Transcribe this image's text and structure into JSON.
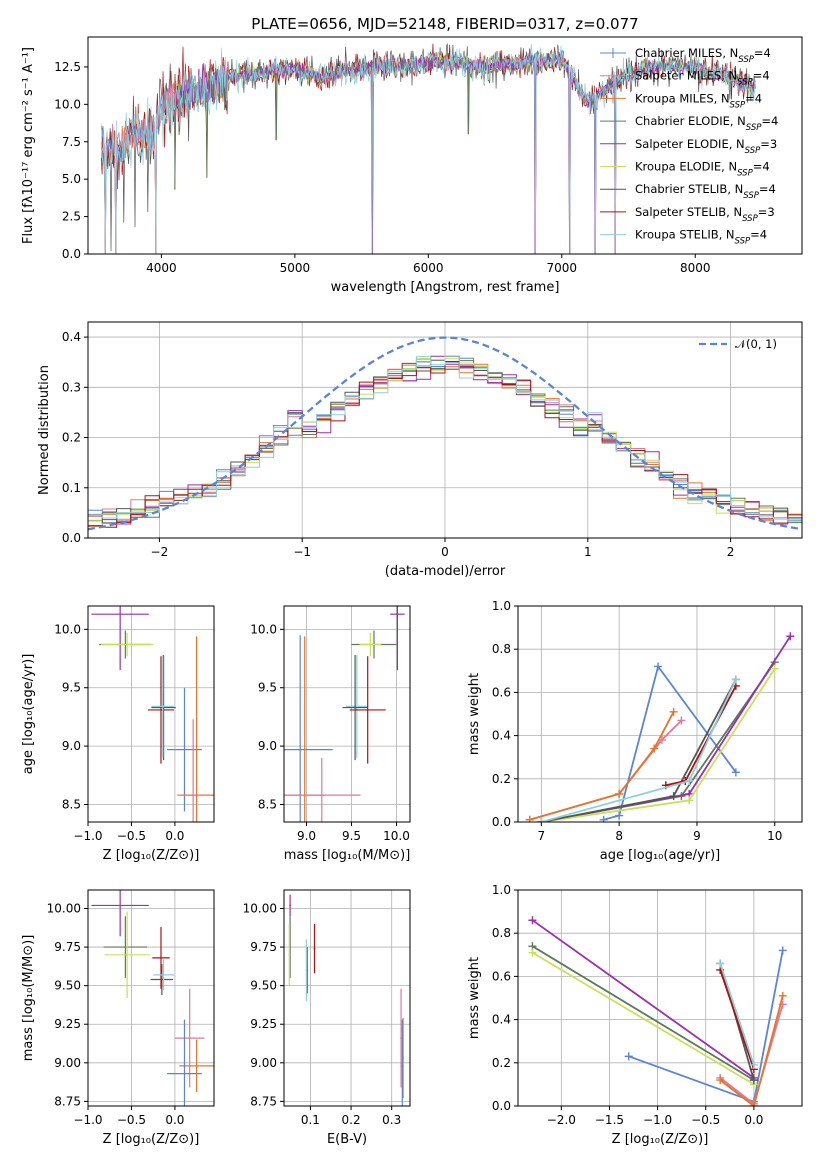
{
  "colors": {
    "Chabrier MILES": "#5b84d8",
    "Salpeter MILES": "#e07898",
    "Kroupa MILES": "#e8742a",
    "Chabrier ELODIE": "#5c7a5c",
    "Salpeter ELODIE": "#9a2fb0",
    "Kroupa ELODIE": "#c8e05a",
    "Chabrier STELIB": "#555555",
    "Salpeter STELIB": "#b01010",
    "Kroupa STELIB": "#8cd0dc"
  },
  "chart_data": [
    {
      "id": "spectrum",
      "type": "line",
      "title": "PLATE=0656, MJD=52148, FIBERID=0317, z=0.077",
      "xlabel": "wavelength [Angstrom, rest frame]",
      "ylabel": "Flux [fλ10⁻¹⁷ erg cm⁻² s⁻¹ A⁻¹]",
      "xlim": [
        3450,
        8800
      ],
      "ylim": [
        0,
        14.5
      ],
      "xticks": [
        4000,
        5000,
        6000,
        7000,
        8000
      ],
      "yticks": [
        0.0,
        2.5,
        5.0,
        7.5,
        10.0,
        12.5
      ],
      "grid": false,
      "legend_position": "top-right",
      "legend": [
        {
          "name": "Chabrier MILES",
          "label": "Chabrier MILES, N",
          "sub": "SSP",
          "n": "=4"
        },
        {
          "name": "Salpeter MILES",
          "label": "Salpeter MILES, N",
          "sub": "SSP",
          "n": "=4"
        },
        {
          "name": "Kroupa MILES",
          "label": "Kroupa MILES, N",
          "sub": "SSP",
          "n": "=4"
        },
        {
          "name": "Chabrier ELODIE",
          "label": "Chabrier ELODIE, N",
          "sub": "SSP",
          "n": "=4"
        },
        {
          "name": "Salpeter ELODIE",
          "label": "Salpeter ELODIE, N",
          "sub": "SSP",
          "n": "=3"
        },
        {
          "name": "Kroupa ELODIE",
          "label": "Kroupa ELODIE, N",
          "sub": "SSP",
          "n": "=4"
        },
        {
          "name": "Chabrier STELIB",
          "label": "Chabrier STELIB, N",
          "sub": "SSP",
          "n": "=4"
        },
        {
          "name": "Salpeter STELIB",
          "label": "Salpeter STELIB, N",
          "sub": "SSP",
          "n": "=3"
        },
        {
          "name": "Kroupa STELIB",
          "label": "Kroupa STELIB, N",
          "sub": "SSP",
          "n": "=4"
        }
      ],
      "continuum_anchors": [
        [
          3550,
          7.2
        ],
        [
          3650,
          7.0
        ],
        [
          3800,
          7.8
        ],
        [
          3950,
          8.2
        ],
        [
          4000,
          9.8
        ],
        [
          4100,
          10.6
        ],
        [
          4300,
          11.0
        ],
        [
          4500,
          11.8
        ],
        [
          4700,
          12.1
        ],
        [
          5000,
          12.4
        ],
        [
          5200,
          11.8
        ],
        [
          5400,
          12.3
        ],
        [
          5600,
          12.5
        ],
        [
          5800,
          12.6
        ],
        [
          6000,
          12.8
        ],
        [
          6200,
          12.9
        ],
        [
          6400,
          12.5
        ],
        [
          6600,
          12.7
        ],
        [
          6800,
          12.9
        ],
        [
          7000,
          13.0
        ],
        [
          7200,
          10.0
        ],
        [
          7400,
          11.6
        ],
        [
          7700,
          12.6
        ],
        [
          8000,
          12.4
        ],
        [
          8200,
          12.0
        ],
        [
          8400,
          11.3
        ]
      ],
      "noise_drops": [
        [
          3580,
          0.0
        ],
        [
          3620,
          0.2
        ],
        [
          3660,
          0.0
        ],
        [
          3720,
          2.1
        ],
        [
          3800,
          1.8
        ],
        [
          3900,
          2.8
        ],
        [
          3960,
          0.0
        ],
        [
          4100,
          4.3
        ],
        [
          4340,
          5.1
        ],
        [
          4860,
          7.6
        ],
        [
          5580,
          0.0
        ],
        [
          6300,
          8.0
        ],
        [
          6800,
          0.0
        ],
        [
          7060,
          0.0
        ],
        [
          7250,
          0.0
        ],
        [
          7400,
          0.0
        ]
      ]
    },
    {
      "id": "residuals",
      "type": "histogram",
      "xlabel": "(data-model)/error",
      "ylabel": "Normed distribution",
      "xlim": [
        -2.5,
        2.5
      ],
      "ylim": [
        0,
        0.43
      ],
      "xticks": [
        -2,
        -1,
        0,
        1,
        2
      ],
      "yticks": [
        0.0,
        0.1,
        0.2,
        0.3,
        0.4
      ],
      "grid": true,
      "legend_position": "top-right",
      "legend_label": "𝒩(0, 1)",
      "reference_curve": "gaussian mean 0 sigma 1",
      "bins": 50
    },
    {
      "id": "age-vs-Z",
      "type": "errorbar",
      "xlabel": "Z [log₁₀(Z/Z⊙)]",
      "ylabel": "age  [log₁₀(age/yr)]",
      "xlim": [
        -1.0,
        0.45
      ],
      "ylim": [
        8.35,
        10.2
      ],
      "xticks": [
        -1.0,
        -0.5,
        0.0
      ],
      "yticks": [
        8.5,
        9.0,
        9.5,
        10.0
      ],
      "grid": true,
      "points": [
        {
          "s": "Salpeter ELODIE",
          "x": -0.63,
          "xerr": 0.33,
          "y": 10.13,
          "yerr": 0.48
        },
        {
          "s": "Chabrier ELODIE",
          "x": -0.57,
          "xerr": 0.3,
          "y": 9.87,
          "yerr": 0.12
        },
        {
          "s": "Kroupa ELODIE",
          "x": -0.55,
          "xerr": 0.3,
          "y": 9.87,
          "yerr": 0.1
        },
        {
          "s": "Chabrier STELIB",
          "x": -0.13,
          "xerr": 0.14,
          "y": 9.33,
          "yerr": 0.45
        },
        {
          "s": "Salpeter STELIB",
          "x": -0.16,
          "xerr": 0.15,
          "y": 9.31,
          "yerr": 0.46
        },
        {
          "s": "Kroupa STELIB",
          "x": -0.14,
          "xerr": 0.13,
          "y": 9.34,
          "yerr": 0.44
        },
        {
          "s": "Chabrier MILES",
          "x": 0.11,
          "xerr": 0.2,
          "y": 8.97,
          "yerr": 0.53
        },
        {
          "s": "Kroupa MILES",
          "x": 0.25,
          "xerr": 0.22,
          "y": 8.58,
          "yerr": 1.36
        },
        {
          "s": "Salpeter MILES",
          "x": 0.21,
          "xerr": 0.03,
          "y": 8.58,
          "yerr": 0.65
        }
      ]
    },
    {
      "id": "age-vs-mass",
      "type": "errorbar",
      "xlabel": "mass [log₁₀(M/M⊙)]",
      "ylabel": "",
      "xlim": [
        8.75,
        10.15
      ],
      "ylim": [
        8.35,
        10.2
      ],
      "xticks": [
        9.0,
        9.5,
        10.0
      ],
      "yticks": [
        8.5,
        9.0,
        9.5,
        10.0
      ],
      "grid": true,
      "points": [
        {
          "s": "Chabrier MILES",
          "x": 8.93,
          "xerr": 0.36,
          "y": 8.97,
          "yerr": 0.98
        },
        {
          "s": "Kroupa MILES",
          "x": 8.98,
          "xerr": 0.23,
          "y": 8.58,
          "yerr": 1.36
        },
        {
          "s": "Salpeter MILES",
          "x": 9.17,
          "xerr": 0.43,
          "y": 8.58,
          "yerr": 0.32
        },
        {
          "s": "Kroupa STELIB",
          "x": 9.56,
          "xerr": 0.12,
          "y": 9.34,
          "yerr": 0.44
        },
        {
          "s": "Chabrier STELIB",
          "x": 9.54,
          "xerr": 0.14,
          "y": 9.33,
          "yerr": 0.45
        },
        {
          "s": "Salpeter STELIB",
          "x": 9.68,
          "xerr": 0.2,
          "y": 9.31,
          "yerr": 0.46
        },
        {
          "s": "Chabrier ELODIE",
          "x": 9.75,
          "xerr": 0.25,
          "y": 9.87,
          "yerr": 0.12
        },
        {
          "s": "Kroupa ELODIE",
          "x": 9.71,
          "xerr": 0.12,
          "y": 9.87,
          "yerr": 0.1
        },
        {
          "s": "Salpeter ELODIE",
          "x": 10.01,
          "xerr": 0.08,
          "y": 10.13,
          "yerr": 0.48
        }
      ]
    },
    {
      "id": "massweight-vs-age",
      "type": "line",
      "xlabel": "age  [log₁₀(age/yr)]",
      "ylabel": "mass weight",
      "xlim": [
        6.7,
        10.35
      ],
      "ylim": [
        0,
        1.0
      ],
      "xticks": [
        7,
        8,
        9,
        10
      ],
      "yticks": [
        0.0,
        0.2,
        0.4,
        0.6,
        0.8,
        1.0
      ],
      "grid": true,
      "series": [
        {
          "name": "Chabrier MILES",
          "x": [
            7.8,
            8.0,
            8.5,
            9.5
          ],
          "y": [
            0.01,
            0.03,
            0.72,
            0.23
          ]
        },
        {
          "name": "Salpeter MILES",
          "x": [
            6.85,
            8.0,
            8.55,
            8.8
          ],
          "y": [
            0.01,
            0.13,
            0.38,
            0.47
          ]
        },
        {
          "name": "Kroupa MILES",
          "x": [
            6.85,
            8.0,
            8.45,
            8.7
          ],
          "y": [
            0.01,
            0.13,
            0.34,
            0.51
          ]
        },
        {
          "name": "Chabrier ELODIE",
          "x": [
            7.0,
            8.8,
            10.0
          ],
          "y": [
            0.0,
            0.12,
            0.74
          ]
        },
        {
          "name": "Salpeter ELODIE",
          "x": [
            7.0,
            8.9,
            10.2
          ],
          "y": [
            0.0,
            0.13,
            0.86
          ]
        },
        {
          "name": "Kroupa ELODIE",
          "x": [
            7.0,
            8.9,
            10.0
          ],
          "y": [
            0.0,
            0.1,
            0.71
          ]
        },
        {
          "name": "Chabrier STELIB",
          "x": [
            7.0,
            8.7,
            9.5
          ],
          "y": [
            0.0,
            0.12,
            0.66
          ]
        },
        {
          "name": "Salpeter STELIB",
          "x": [
            8.6,
            8.85,
            9.5
          ],
          "y": [
            0.17,
            0.19,
            0.63
          ]
        },
        {
          "name": "Kroupa STELIB",
          "x": [
            7.0,
            8.9,
            9.5
          ],
          "y": [
            0.0,
            0.19,
            0.66
          ]
        }
      ]
    },
    {
      "id": "mass-vs-Z",
      "type": "errorbar",
      "xlabel": "Z [log₁₀(Z/Z⊙)]",
      "ylabel": "mass [log₁₀(M/M⊙)]",
      "xlim": [
        -1.0,
        0.45
      ],
      "ylim": [
        8.72,
        10.12
      ],
      "xticks": [
        -1.0,
        -0.5,
        0.0
      ],
      "yticks": [
        8.75,
        9.0,
        9.25,
        9.5,
        9.75,
        10.0
      ],
      "grid": true,
      "points": [
        {
          "s": "Salpeter ELODIE",
          "x": -0.63,
          "xerr": 0.33,
          "y": 10.02,
          "yerr": 0.2
        },
        {
          "s": "Chabrier ELODIE",
          "x": -0.57,
          "xerr": 0.25,
          "y": 9.75,
          "yerr": 0.2
        },
        {
          "s": "Kroupa ELODIE",
          "x": -0.55,
          "xerr": 0.26,
          "y": 9.7,
          "yerr": 0.28
        },
        {
          "s": "Salpeter STELIB",
          "x": -0.16,
          "xerr": 0.1,
          "y": 9.68,
          "yerr": 0.2
        },
        {
          "s": "Chabrier STELIB",
          "x": -0.15,
          "xerr": 0.13,
          "y": 9.54,
          "yerr": 0.1
        },
        {
          "s": "Kroupa STELIB",
          "x": -0.13,
          "xerr": 0.12,
          "y": 9.57,
          "yerr": 0.1
        },
        {
          "s": "Salpeter MILES",
          "x": 0.17,
          "xerr": 0.17,
          "y": 9.16,
          "yerr": 0.32
        },
        {
          "s": "Kroupa MILES",
          "x": 0.25,
          "xerr": 0.2,
          "y": 8.98,
          "yerr": 0.17
        },
        {
          "s": "Chabrier MILES",
          "x": 0.11,
          "xerr": 0.2,
          "y": 8.93,
          "yerr": 0.35
        }
      ]
    },
    {
      "id": "mass-vs-EBV",
      "type": "errorbar",
      "xlabel": "E(B-V)",
      "ylabel": "",
      "xlim": [
        0.035,
        0.345
      ],
      "ylim": [
        8.72,
        10.12
      ],
      "xticks": [
        0.1,
        0.2,
        0.3
      ],
      "yticks": [
        8.75,
        9.0,
        9.25,
        9.5,
        9.75,
        10.0
      ],
      "grid": true,
      "points": [
        {
          "s": "Salpeter ELODIE",
          "x": 0.05,
          "xerr": 0.002,
          "y": 10.02,
          "yerr": 0.07
        },
        {
          "s": "Chabrier ELODIE",
          "x": 0.05,
          "xerr": 0.002,
          "y": 9.75,
          "yerr": 0.2
        },
        {
          "s": "Kroupa ELODIE",
          "x": 0.048,
          "xerr": 0.002,
          "y": 9.7,
          "yerr": 0.2
        },
        {
          "s": "Chabrier STELIB",
          "x": 0.092,
          "xerr": 0.002,
          "y": 9.6,
          "yerr": 0.15
        },
        {
          "s": "Kroupa STELIB",
          "x": 0.09,
          "xerr": 0.002,
          "y": 9.6,
          "yerr": 0.2
        },
        {
          "s": "Salpeter STELIB",
          "x": 0.11,
          "xerr": 0.002,
          "y": 9.74,
          "yerr": 0.16
        },
        {
          "s": "Salpeter MILES",
          "x": 0.323,
          "xerr": 0.002,
          "y": 9.16,
          "yerr": 0.32
        },
        {
          "s": "Kroupa MILES",
          "x": 0.328,
          "xerr": 0.002,
          "y": 9.03,
          "yerr": 0.26
        },
        {
          "s": "Chabrier MILES",
          "x": 0.326,
          "xerr": 0.002,
          "y": 8.98,
          "yerr": 0.3
        }
      ]
    },
    {
      "id": "massweight-vs-Z",
      "type": "line",
      "xlabel": "Z [log₁₀(Z/Z⊙)]",
      "ylabel": "mass weight",
      "xlim": [
        -2.45,
        0.5
      ],
      "ylim": [
        0,
        1.0
      ],
      "xticks": [
        -2.0,
        -1.5,
        -1.0,
        -0.5,
        0.0
      ],
      "yticks": [
        0.0,
        0.2,
        0.4,
        0.6,
        0.8,
        1.0
      ],
      "grid": true,
      "series": [
        {
          "name": "Chabrier MILES",
          "x": [
            -1.3,
            0.0,
            0.3
          ],
          "y": [
            0.23,
            0.02,
            0.72
          ]
        },
        {
          "name": "Salpeter MILES",
          "x": [
            -0.35,
            0.0,
            0.3
          ],
          "y": [
            0.13,
            0.01,
            0.47
          ]
        },
        {
          "name": "Kroupa MILES",
          "x": [
            -0.35,
            0.0,
            0.3
          ],
          "y": [
            0.12,
            0.0,
            0.51
          ]
        },
        {
          "name": "Chabrier ELODIE",
          "x": [
            -2.3,
            0.0
          ],
          "y": [
            0.74,
            0.12
          ]
        },
        {
          "name": "Salpeter ELODIE",
          "x": [
            -2.3,
            0.0
          ],
          "y": [
            0.86,
            0.13
          ]
        },
        {
          "name": "Kroupa ELODIE",
          "x": [
            -2.3,
            0.0
          ],
          "y": [
            0.71,
            0.1
          ]
        },
        {
          "name": "Chabrier STELIB",
          "x": [
            -0.35,
            0.0
          ],
          "y": [
            0.66,
            0.12
          ]
        },
        {
          "name": "Salpeter STELIB",
          "x": [
            -0.35,
            0.0
          ],
          "y": [
            0.63,
            0.17
          ]
        },
        {
          "name": "Kroupa STELIB",
          "x": [
            -0.35,
            0.0
          ],
          "y": [
            0.66,
            0.19
          ]
        }
      ]
    }
  ]
}
